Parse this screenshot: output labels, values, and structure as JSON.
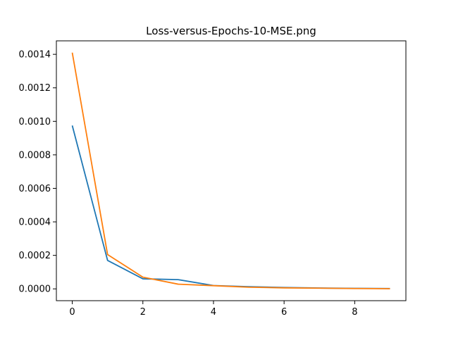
{
  "chart_data": {
    "type": "line",
    "title": "Loss-versus-Epochs-10-MSE.png",
    "xlabel": "",
    "ylabel": "",
    "xlim": [
      -0.45,
      9.45
    ],
    "ylim": [
      -7.05e-05,
      0.0014805
    ],
    "x": [
      0,
      1,
      2,
      3,
      4,
      5,
      6,
      7,
      8,
      9
    ],
    "xticks": [
      0,
      2,
      4,
      6,
      8
    ],
    "xtick_labels": [
      "0",
      "2",
      "4",
      "6",
      "8"
    ],
    "yticks": [
      0,
      0.0002,
      0.0004,
      0.0006,
      0.0008,
      0.001,
      0.0012,
      0.0014
    ],
    "ytick_labels": [
      "0.0000",
      "0.0002",
      "0.0004",
      "0.0006",
      "0.0008",
      "0.0010",
      "0.0012",
      "0.0014"
    ],
    "grid": false,
    "series": [
      {
        "color": "#1f77b4",
        "values": [
          0.000975,
          0.00017,
          6e-05,
          5.5e-05,
          2e-05,
          1.3e-05,
          8e-06,
          5e-06,
          3e-06,
          2e-06
        ]
      },
      {
        "color": "#ff7f0e",
        "values": [
          0.00141,
          0.000205,
          7e-05,
          2.8e-05,
          1.9e-05,
          1e-05,
          6e-06,
          4e-06,
          2e-06,
          1e-06
        ]
      }
    ]
  }
}
